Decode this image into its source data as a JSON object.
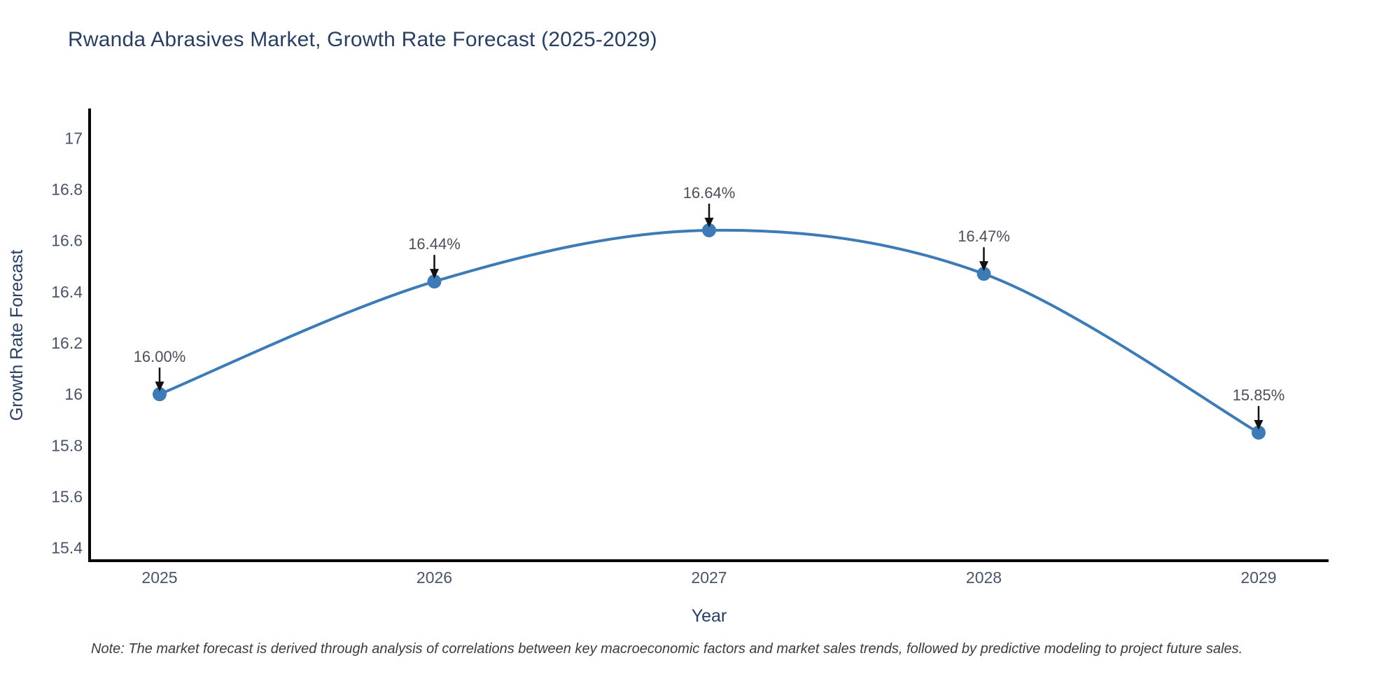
{
  "header": {
    "title": "Rwanda Abrasives Market, Growth Rate Forecast (2025-2029)"
  },
  "footnote": {
    "text": "Note: The market forecast is derived through analysis of correlations between key macroeconomic factors and market sales trends, followed by predictive modeling to project future sales."
  },
  "chart_data": {
    "type": "line",
    "title": "Rwanda Abrasives Market, Growth Rate Forecast (2025-2029)",
    "xlabel": "Year",
    "ylabel": "Growth Rate Forecast",
    "categories": [
      2025,
      2026,
      2027,
      2028,
      2029
    ],
    "series": [
      {
        "name": "Growth Rate Forecast",
        "values": [
          16.0,
          16.44,
          16.64,
          16.47,
          15.85
        ]
      }
    ],
    "point_labels": [
      "16.00%",
      "16.44%",
      "16.64%",
      "16.47%",
      "15.85%"
    ],
    "yticks": [
      15.4,
      15.6,
      15.8,
      16,
      16.2,
      16.4,
      16.6,
      16.8,
      17
    ],
    "ylim": [
      15.35,
      17.11
    ],
    "line_shape": "spline",
    "grid": false,
    "legend": "none",
    "annotations_have_arrows": true,
    "colors": {
      "line": "#3d7bb6",
      "marker": "#3d7bb6",
      "axis": "#000000",
      "title_text": "#2a3f5f",
      "tick_text": "#4a5468",
      "annotation_text": "#4a4f58",
      "arrow": "#111111",
      "note_text": "#3c3c3c"
    }
  }
}
